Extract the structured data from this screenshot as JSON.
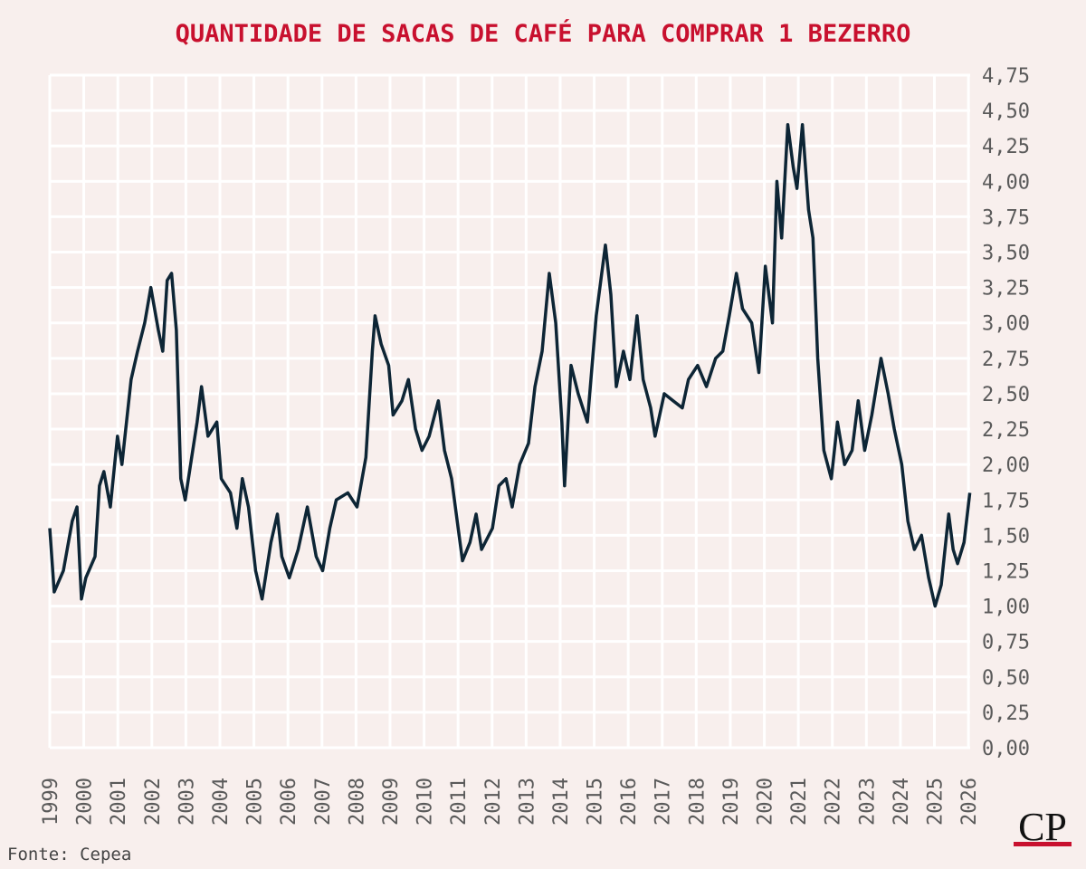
{
  "chart_data": {
    "type": "line",
    "title": "QUANTIDADE DE SACAS DE CAFÉ PARA COMPRAR 1 BEZERRO",
    "source": "Fonte: Cepea",
    "logo": "CP",
    "xlim": [
      1999,
      2026.05
    ],
    "xticks": [
      1999,
      2000,
      2001,
      2002,
      2003,
      2004,
      2005,
      2006,
      2007,
      2008,
      2009,
      2010,
      2011,
      2012,
      2013,
      2014,
      2015,
      2016,
      2017,
      2018,
      2019,
      2020,
      2021,
      2022,
      2023,
      2024,
      2025,
      2026
    ],
    "ylim": [
      0,
      4.75
    ],
    "yticks": [
      {
        "value": 0,
        "label": "0,00"
      },
      {
        "value": 0.25,
        "label": "0,25"
      },
      {
        "value": 0.5,
        "label": "0,50"
      },
      {
        "value": 0.75,
        "label": "0,75"
      },
      {
        "value": 1,
        "label": "1,00"
      },
      {
        "value": 1.25,
        "label": "1,25"
      },
      {
        "value": 1.5,
        "label": "1,50"
      },
      {
        "value": 1.75,
        "label": "1,75"
      },
      {
        "value": 2,
        "label": "2,00"
      },
      {
        "value": 2.25,
        "label": "2,25"
      },
      {
        "value": 2.5,
        "label": "2,50"
      },
      {
        "value": 2.75,
        "label": "2,75"
      },
      {
        "value": 3,
        "label": "3,00"
      },
      {
        "value": 3.25,
        "label": "3,25"
      },
      {
        "value": 3.5,
        "label": "3,50"
      },
      {
        "value": 3.75,
        "label": "3,75"
      },
      {
        "value": 4,
        "label": "4,00"
      },
      {
        "value": 4.25,
        "label": "4,25"
      },
      {
        "value": 4.5,
        "label": "4,50"
      },
      {
        "value": 4.75,
        "label": "4,75"
      }
    ],
    "grid": true,
    "series": [
      {
        "color": "#0d2535",
        "x": [
          1999.0,
          1999.13,
          1999.4,
          1999.66,
          1999.8,
          1999.93,
          2000.06,
          2000.33,
          2000.46,
          2000.59,
          2000.78,
          2000.99,
          2001.12,
          2001.39,
          2001.58,
          2001.79,
          2001.97,
          2002.19,
          2002.32,
          2002.45,
          2002.58,
          2002.72,
          2002.85,
          2002.98,
          2003.17,
          2003.33,
          2003.46,
          2003.65,
          2003.91,
          2004.04,
          2004.31,
          2004.5,
          2004.66,
          2004.84,
          2005.05,
          2005.24,
          2005.5,
          2005.69,
          2005.82,
          2006.04,
          2006.3,
          2006.57,
          2006.83,
          2007.02,
          2007.23,
          2007.42,
          2007.76,
          2008.03,
          2008.29,
          2008.48,
          2008.56,
          2008.74,
          2008.96,
          2009.09,
          2009.35,
          2009.54,
          2009.75,
          2009.94,
          2010.15,
          2010.42,
          2010.6,
          2010.81,
          2011.03,
          2011.13,
          2011.35,
          2011.53,
          2011.69,
          2012.01,
          2012.2,
          2012.41,
          2012.59,
          2012.81,
          2013.07,
          2013.26,
          2013.47,
          2013.68,
          2013.87,
          2014.05,
          2014.13,
          2014.32,
          2014.53,
          2014.8,
          2015.06,
          2015.33,
          2015.49,
          2015.65,
          2015.86,
          2016.05,
          2016.26,
          2016.44,
          2016.66,
          2016.79,
          2017.06,
          2017.32,
          2017.59,
          2017.77,
          2018.04,
          2018.3,
          2018.57,
          2018.78,
          2018.97,
          2019.18,
          2019.36,
          2019.63,
          2019.84,
          2020.03,
          2020.24,
          2020.37,
          2020.51,
          2020.69,
          2020.85,
          2020.96,
          2021.12,
          2021.3,
          2021.43,
          2021.57,
          2021.75,
          2021.97,
          2022.15,
          2022.36,
          2022.58,
          2022.76,
          2022.95,
          2023.16,
          2023.43,
          2023.64,
          2023.82,
          2024.04,
          2024.22,
          2024.41,
          2024.62,
          2024.83,
          2025.02,
          2025.2,
          2025.42,
          2025.55,
          2025.68,
          2025.87,
          2026.04
        ],
        "values": [
          1.55,
          1.1,
          1.25,
          1.6,
          1.7,
          1.05,
          1.2,
          1.35,
          1.85,
          1.95,
          1.7,
          2.2,
          2.0,
          2.6,
          2.8,
          3.0,
          3.25,
          2.95,
          2.8,
          3.3,
          3.35,
          2.95,
          1.9,
          1.75,
          2.05,
          2.3,
          2.55,
          2.2,
          2.3,
          1.9,
          1.8,
          1.55,
          1.9,
          1.7,
          1.25,
          1.05,
          1.45,
          1.65,
          1.35,
          1.2,
          1.4,
          1.7,
          1.35,
          1.25,
          1.55,
          1.75,
          1.8,
          1.7,
          2.05,
          2.8,
          3.05,
          2.85,
          2.7,
          2.35,
          2.45,
          2.6,
          2.25,
          2.1,
          2.2,
          2.45,
          2.1,
          1.9,
          1.5,
          1.32,
          1.45,
          1.65,
          1.4,
          1.55,
          1.85,
          1.9,
          1.7,
          2.0,
          2.15,
          2.55,
          2.8,
          3.35,
          3.0,
          2.3,
          1.85,
          2.7,
          2.5,
          2.3,
          3.05,
          3.55,
          3.2,
          2.55,
          2.8,
          2.6,
          3.05,
          2.6,
          2.4,
          2.2,
          2.5,
          2.45,
          2.4,
          2.6,
          2.7,
          2.55,
          2.75,
          2.8,
          3.05,
          3.35,
          3.1,
          3.0,
          2.65,
          3.4,
          3.0,
          4.0,
          3.6,
          4.4,
          4.1,
          3.95,
          4.4,
          3.8,
          3.6,
          2.75,
          2.1,
          1.9,
          2.3,
          2.0,
          2.1,
          2.45,
          2.1,
          2.35,
          2.75,
          2.5,
          2.25,
          2.0,
          1.6,
          1.4,
          1.5,
          1.2,
          1.0,
          1.15,
          1.65,
          1.4,
          1.3,
          1.45,
          1.8
        ]
      }
    ]
  }
}
